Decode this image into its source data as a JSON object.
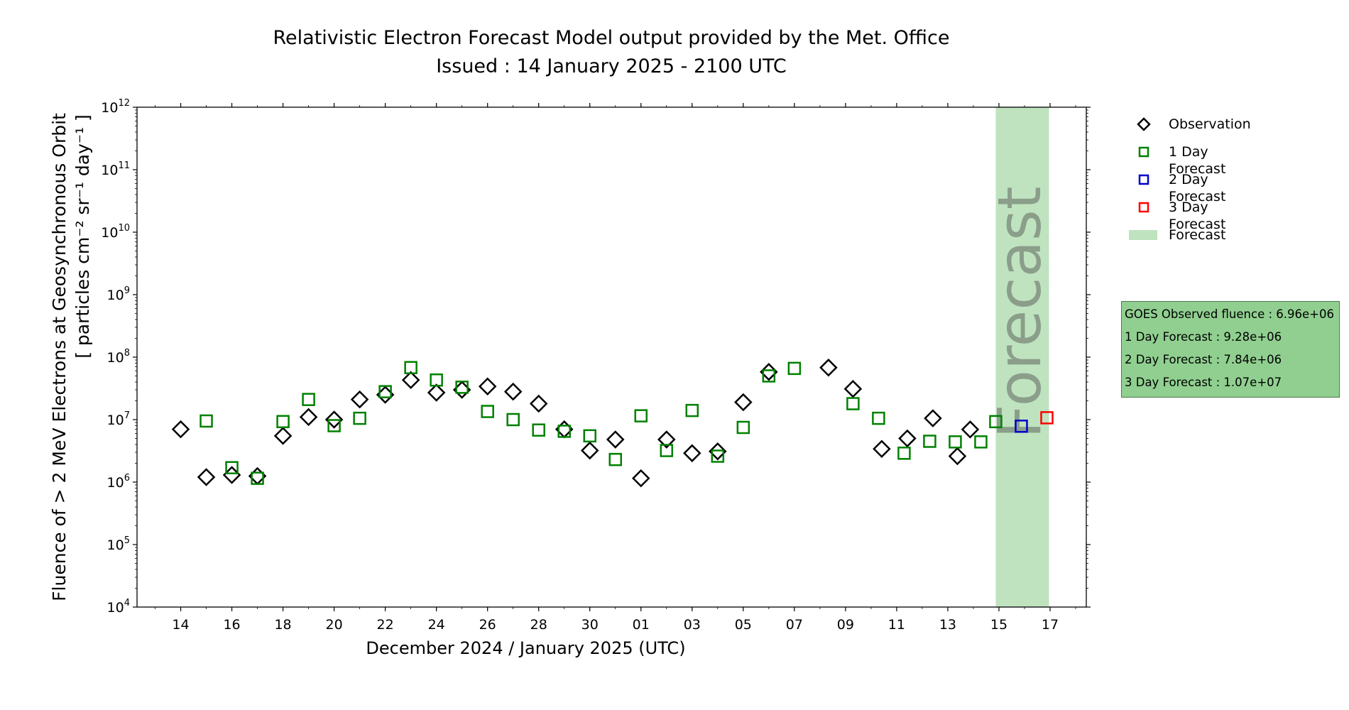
{
  "title": {
    "line1": "Relativistic Electron Forecast Model output provided by the Met. Office",
    "line2": "Issued : 14 January 2025 - 2100 UTC"
  },
  "legend": [
    {
      "label": "Observation",
      "marker": "diamond",
      "color": "#000000"
    },
    {
      "label": "1 Day Forecast",
      "marker": "square",
      "color": "#008000"
    },
    {
      "label": "2 Day Forecast",
      "marker": "square",
      "color": "#0000cc"
    },
    {
      "label": "3 Day Forecast",
      "marker": "square",
      "color": "#ff0000"
    },
    {
      "label": "Forecast",
      "marker": "band",
      "color": "#bfe3bf"
    }
  ],
  "infobox": [
    "GOES Observed fluence : 6.96e+06",
    "1 Day Forecast : 9.28e+06",
    "2 Day Forecast : 7.84e+06",
    "3 Day Forecast : 1.07e+07"
  ],
  "chart_data": {
    "type": "scatter",
    "title": "Relativistic Electron Forecast Model output provided by the Met. Office",
    "subtitle": "Issued : 14 January 2025 - 2100 UTC",
    "xlabel": "December 2024 / January 2025 (UTC)",
    "ylabel_line1": "Fluence of > 2 MeV Electrons at Geosynchronous Orbit",
    "ylabel_line2": "[ particles cm⁻² sr⁻¹ day⁻¹ ]",
    "yscale": "log",
    "ylim": [
      10000,
      1000000000000
    ],
    "xlim": [
      "2024-12-12T07:00",
      "2025-01-18T10:00"
    ],
    "yticks": [
      {
        "base": "10",
        "exp": "4",
        "value": 10000
      },
      {
        "base": "10",
        "exp": "5",
        "value": 100000
      },
      {
        "base": "10",
        "exp": "6",
        "value": 1000000
      },
      {
        "base": "10",
        "exp": "7",
        "value": 10000000
      },
      {
        "base": "10",
        "exp": "8",
        "value": 100000000
      },
      {
        "base": "10",
        "exp": "9",
        "value": 1000000000
      },
      {
        "base": "10",
        "exp": "10",
        "value": 10000000000
      },
      {
        "base": "10",
        "exp": "11",
        "value": 100000000000
      },
      {
        "base": "10",
        "exp": "12",
        "value": 1000000000000
      }
    ],
    "xticks": [
      {
        "label": "14",
        "date": "2024-12-14"
      },
      {
        "label": "16",
        "date": "2024-12-16"
      },
      {
        "label": "18",
        "date": "2024-12-18"
      },
      {
        "label": "20",
        "date": "2024-12-20"
      },
      {
        "label": "22",
        "date": "2024-12-22"
      },
      {
        "label": "24",
        "date": "2024-12-24"
      },
      {
        "label": "26",
        "date": "2024-12-26"
      },
      {
        "label": "28",
        "date": "2024-12-28"
      },
      {
        "label": "30",
        "date": "2024-12-30"
      },
      {
        "label": "01",
        "date": "2025-01-01"
      },
      {
        "label": "03",
        "date": "2025-01-03"
      },
      {
        "label": "05",
        "date": "2025-01-05"
      },
      {
        "label": "07",
        "date": "2025-01-07"
      },
      {
        "label": "09",
        "date": "2025-01-09"
      },
      {
        "label": "11",
        "date": "2025-01-11"
      },
      {
        "label": "13",
        "date": "2025-01-13"
      },
      {
        "label": "15",
        "date": "2025-01-15"
      },
      {
        "label": "17",
        "date": "2025-01-17"
      }
    ],
    "forecast_band": {
      "start": "2025-01-14T21:00",
      "end": "2025-01-16T23:00",
      "label": "Forecast"
    },
    "series": [
      {
        "name": "Observation",
        "marker": "diamond",
        "color": "#000000",
        "points": [
          [
            "2024-12-14T00:00",
            7000000.0
          ],
          [
            "2024-12-15T00:00",
            1200000.0
          ],
          [
            "2024-12-16T00:00",
            1300000.0
          ],
          [
            "2024-12-17T00:00",
            1250000.0
          ],
          [
            "2024-12-18T00:00",
            5500000.0
          ],
          [
            "2024-12-19T00:00",
            11000000.0
          ],
          [
            "2024-12-20T00:00",
            10000000.0
          ],
          [
            "2024-12-21T00:00",
            21000000.0
          ],
          [
            "2024-12-22T00:00",
            25000000.0
          ],
          [
            "2024-12-23T00:00",
            43000000.0
          ],
          [
            "2024-12-24T00:00",
            27000000.0
          ],
          [
            "2024-12-25T00:00",
            30000000.0
          ],
          [
            "2024-12-26T00:00",
            34000000.0
          ],
          [
            "2024-12-27T00:00",
            28000000.0
          ],
          [
            "2024-12-28T00:00",
            18000000.0
          ],
          [
            "2024-12-29T00:00",
            7000000.0
          ],
          [
            "2024-12-30T00:00",
            3200000.0
          ],
          [
            "2024-12-31T00:00",
            4800000.0
          ],
          [
            "2025-01-01T00:00",
            1150000.0
          ],
          [
            "2025-01-02T00:00",
            4800000.0
          ],
          [
            "2025-01-03T00:00",
            2900000.0
          ],
          [
            "2025-01-04T00:00",
            3100000.0
          ],
          [
            "2025-01-05T00:00",
            19000000.0
          ],
          [
            "2025-01-06T00:00",
            58000000.0
          ],
          [
            "2025-01-08T08:00",
            68000000.0
          ],
          [
            "2025-01-09T07:00",
            31000000.0
          ],
          [
            "2025-01-10T10:00",
            3400000.0
          ],
          [
            "2025-01-11T10:00",
            5000000.0
          ],
          [
            "2025-01-12T10:00",
            10500000.0
          ],
          [
            "2025-01-13T09:00",
            2600000.0
          ],
          [
            "2025-01-13T21:00",
            6960000.0
          ]
        ]
      },
      {
        "name": "1 Day Forecast",
        "marker": "square",
        "color": "#008000",
        "points": [
          [
            "2024-12-15T00:00",
            9500000.0
          ],
          [
            "2024-12-16T00:00",
            1700000.0
          ],
          [
            "2024-12-17T00:00",
            1150000.0
          ],
          [
            "2024-12-18T00:00",
            9300000.0
          ],
          [
            "2024-12-19T00:00",
            21000000.0
          ],
          [
            "2024-12-20T00:00",
            8000000.0
          ],
          [
            "2024-12-21T00:00",
            10500000.0
          ],
          [
            "2024-12-22T00:00",
            28000000.0
          ],
          [
            "2024-12-23T00:00",
            68000000.0
          ],
          [
            "2024-12-24T00:00",
            43000000.0
          ],
          [
            "2024-12-25T00:00",
            33000000.0
          ],
          [
            "2024-12-26T00:00",
            13500000.0
          ],
          [
            "2024-12-27T00:00",
            10000000.0
          ],
          [
            "2024-12-28T00:00",
            6800000.0
          ],
          [
            "2024-12-29T00:00",
            6500000.0
          ],
          [
            "2024-12-30T00:00",
            5500000.0
          ],
          [
            "2024-12-31T00:00",
            2300000.0
          ],
          [
            "2025-01-01T00:00",
            11500000.0
          ],
          [
            "2025-01-02T00:00",
            3200000.0
          ],
          [
            "2025-01-03T00:00",
            14000000.0
          ],
          [
            "2025-01-04T00:00",
            2600000.0
          ],
          [
            "2025-01-05T00:00",
            7500000.0
          ],
          [
            "2025-01-06T00:00",
            50000000.0
          ],
          [
            "2025-01-07T00:00",
            66000000.0
          ],
          [
            "2025-01-09T07:00",
            18000000.0
          ],
          [
            "2025-01-10T07:00",
            10500000.0
          ],
          [
            "2025-01-11T07:00",
            2900000.0
          ],
          [
            "2025-01-12T07:00",
            4500000.0
          ],
          [
            "2025-01-13T07:00",
            4400000.0
          ],
          [
            "2025-01-14T07:00",
            4400000.0
          ],
          [
            "2025-01-14T21:00",
            9280000.0
          ]
        ]
      },
      {
        "name": "2 Day Forecast",
        "marker": "square",
        "color": "#0000cc",
        "points": [
          [
            "2025-01-15T21:00",
            7840000.0
          ]
        ]
      },
      {
        "name": "3 Day Forecast",
        "marker": "square",
        "color": "#ff0000",
        "points": [
          [
            "2025-01-16T21:00",
            10700000.0
          ]
        ]
      }
    ],
    "grid": false,
    "legend_position": "right"
  }
}
